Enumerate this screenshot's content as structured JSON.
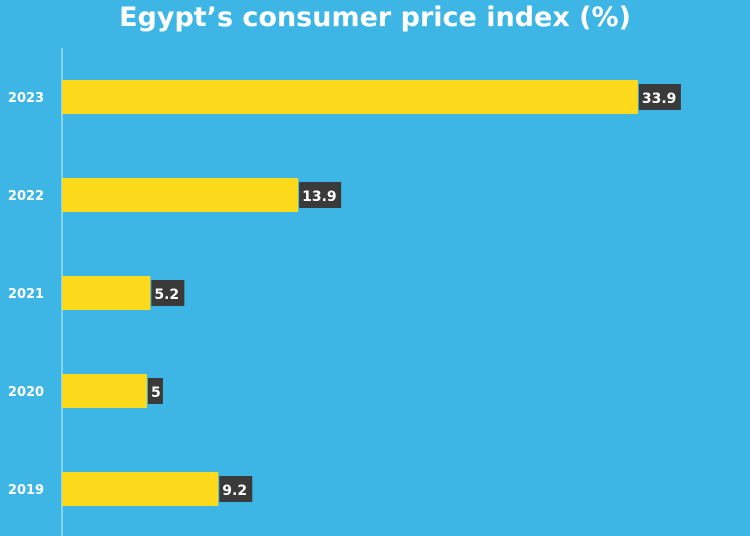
{
  "chart_data": {
    "type": "bar",
    "orientation": "horizontal",
    "title": "Egypt’s consumer price index (%)",
    "categories": [
      "2023",
      "2022",
      "2021",
      "2020",
      "2019"
    ],
    "values": [
      33.9,
      13.9,
      5.2,
      5,
      9.2
    ],
    "value_labels": [
      "33.9",
      "13.9",
      "5.2",
      "5",
      "9.2"
    ],
    "xlabel": "",
    "ylabel": "",
    "xlim": [
      0,
      40.5
    ],
    "grid": false,
    "legend": "none",
    "colors": {
      "background": "#3db6e6",
      "bar": "#fddb1c",
      "label_box": "#3a3a3a",
      "text": "#ffffff",
      "axis": "#ffffff"
    }
  }
}
